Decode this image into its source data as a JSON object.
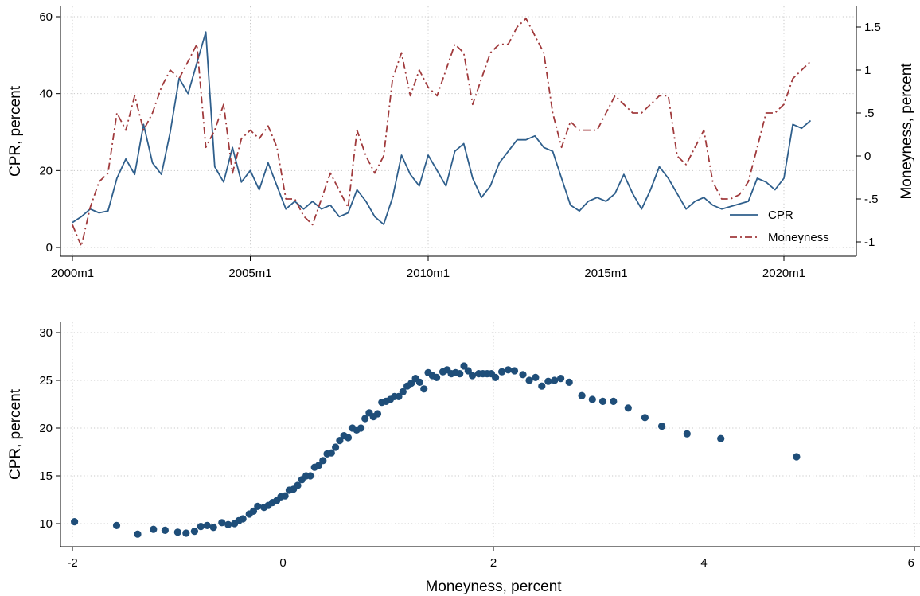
{
  "chart_data": [
    {
      "type": "line",
      "x_ticks": [
        "2000m1",
        "2005m1",
        "2010m1",
        "2015m1",
        "2020m1"
      ],
      "x_range": [
        "2000m1",
        "2021m12"
      ],
      "y_left": {
        "label": "CPR, percent",
        "range": [
          0,
          60
        ],
        "ticks": [
          0,
          20,
          40,
          60
        ]
      },
      "y_right": {
        "label": "Moneyness, percent",
        "range": [
          -1.05,
          1.7
        ],
        "ticks": [
          -1,
          -0.5,
          0,
          0.5,
          1,
          1.5
        ],
        "tick_labels": [
          "-1",
          "-.5",
          "0",
          ".5",
          "1",
          "1.5"
        ]
      },
      "grid": true,
      "legend_position": "bottom-right",
      "series": [
        {
          "name": "CPR",
          "axis": "left",
          "color": "#2f5f8c",
          "style": "solid",
          "points": [
            [
              "2000-01",
              6.5
            ],
            [
              "2000-04",
              8
            ],
            [
              "2000-07",
              10
            ],
            [
              "2000-10",
              9
            ],
            [
              "2001-01",
              9.5
            ],
            [
              "2001-04",
              18
            ],
            [
              "2001-07",
              23
            ],
            [
              "2001-10",
              19
            ],
            [
              "2002-01",
              32
            ],
            [
              "2002-04",
              22
            ],
            [
              "2002-07",
              19
            ],
            [
              "2002-10",
              30
            ],
            [
              "2003-01",
              44
            ],
            [
              "2003-04",
              40
            ],
            [
              "2003-07",
              48
            ],
            [
              "2003-10",
              56
            ],
            [
              "2004-01",
              21
            ],
            [
              "2004-04",
              17
            ],
            [
              "2004-07",
              26
            ],
            [
              "2004-10",
              17
            ],
            [
              "2005-01",
              20
            ],
            [
              "2005-04",
              15
            ],
            [
              "2005-07",
              22
            ],
            [
              "2005-10",
              16
            ],
            [
              "2006-01",
              10
            ],
            [
              "2006-04",
              12
            ],
            [
              "2006-07",
              10
            ],
            [
              "2006-10",
              12
            ],
            [
              "2007-01",
              10
            ],
            [
              "2007-04",
              11
            ],
            [
              "2007-07",
              8
            ],
            [
              "2007-10",
              9
            ],
            [
              "2008-01",
              15
            ],
            [
              "2008-04",
              12
            ],
            [
              "2008-07",
              8
            ],
            [
              "2008-10",
              6
            ],
            [
              "2009-01",
              13
            ],
            [
              "2009-04",
              24
            ],
            [
              "2009-07",
              19
            ],
            [
              "2009-10",
              16
            ],
            [
              "2010-01",
              24
            ],
            [
              "2010-04",
              20
            ],
            [
              "2010-07",
              16
            ],
            [
              "2010-10",
              25
            ],
            [
              "2011-01",
              27
            ],
            [
              "2011-04",
              18
            ],
            [
              "2011-07",
              13
            ],
            [
              "2011-10",
              16
            ],
            [
              "2012-01",
              22
            ],
            [
              "2012-04",
              25
            ],
            [
              "2012-07",
              28
            ],
            [
              "2012-10",
              28
            ],
            [
              "2013-01",
              29
            ],
            [
              "2013-04",
              26
            ],
            [
              "2013-07",
              25
            ],
            [
              "2013-10",
              18
            ],
            [
              "2014-01",
              11
            ],
            [
              "2014-04",
              9.5
            ],
            [
              "2014-07",
              12
            ],
            [
              "2014-10",
              13
            ],
            [
              "2015-01",
              12
            ],
            [
              "2015-04",
              14
            ],
            [
              "2015-07",
              19
            ],
            [
              "2015-10",
              14
            ],
            [
              "2016-01",
              10
            ],
            [
              "2016-04",
              15
            ],
            [
              "2016-07",
              21
            ],
            [
              "2016-10",
              18
            ],
            [
              "2017-01",
              14
            ],
            [
              "2017-04",
              10
            ],
            [
              "2017-07",
              12
            ],
            [
              "2017-10",
              13
            ],
            [
              "2018-01",
              11
            ],
            [
              "2018-04",
              10
            ],
            [
              "2019-01",
              12
            ],
            [
              "2019-04",
              18
            ],
            [
              "2019-07",
              17
            ],
            [
              "2019-10",
              15
            ],
            [
              "2020-01",
              18
            ],
            [
              "2020-04",
              32
            ],
            [
              "2020-07",
              31
            ],
            [
              "2020-10",
              33
            ]
          ]
        },
        {
          "name": "Moneyness",
          "axis": "right",
          "color": "#a03a3c",
          "style": "dash-dot",
          "points": [
            [
              "2000-01",
              -0.8
            ],
            [
              "2000-04",
              -1.05
            ],
            [
              "2000-07",
              -0.6
            ],
            [
              "2000-10",
              -0.3
            ],
            [
              "2001-01",
              -0.2
            ],
            [
              "2001-04",
              0.5
            ],
            [
              "2001-07",
              0.3
            ],
            [
              "2001-10",
              0.7
            ],
            [
              "2002-01",
              0.3
            ],
            [
              "2002-04",
              0.5
            ],
            [
              "2002-07",
              0.8
            ],
            [
              "2002-10",
              1
            ],
            [
              "2003-01",
              0.9
            ],
            [
              "2003-04",
              1.1
            ],
            [
              "2003-07",
              1.3
            ],
            [
              "2003-10",
              0.1
            ],
            [
              "2004-01",
              0.3
            ],
            [
              "2004-04",
              0.6
            ],
            [
              "2004-07",
              -0.2
            ],
            [
              "2004-10",
              0.2
            ],
            [
              "2005-01",
              0.3
            ],
            [
              "2005-04",
              0.2
            ],
            [
              "2005-07",
              0.35
            ],
            [
              "2005-10",
              0.1
            ],
            [
              "2006-01",
              -0.5
            ],
            [
              "2006-04",
              -0.5
            ],
            [
              "2006-07",
              -0.7
            ],
            [
              "2006-10",
              -0.8
            ],
            [
              "2007-01",
              -0.5
            ],
            [
              "2007-04",
              -0.2
            ],
            [
              "2007-07",
              -0.4
            ],
            [
              "2007-10",
              -0.6
            ],
            [
              "2008-01",
              0.3
            ],
            [
              "2008-04",
              0
            ],
            [
              "2008-07",
              -0.2
            ],
            [
              "2008-10",
              0
            ],
            [
              "2009-01",
              0.9
            ],
            [
              "2009-04",
              1.2
            ],
            [
              "2009-07",
              0.7
            ],
            [
              "2009-10",
              1
            ],
            [
              "2010-01",
              0.8
            ],
            [
              "2010-04",
              0.7
            ],
            [
              "2010-07",
              1
            ],
            [
              "2010-10",
              1.3
            ],
            [
              "2011-01",
              1.2
            ],
            [
              "2011-04",
              0.6
            ],
            [
              "2011-07",
              0.9
            ],
            [
              "2011-10",
              1.2
            ],
            [
              "2012-01",
              1.3
            ],
            [
              "2012-04",
              1.3
            ],
            [
              "2012-07",
              1.5
            ],
            [
              "2012-10",
              1.6
            ],
            [
              "2013-01",
              1.4
            ],
            [
              "2013-04",
              1.2
            ],
            [
              "2013-07",
              0.5
            ],
            [
              "2013-10",
              0.1
            ],
            [
              "2014-01",
              0.4
            ],
            [
              "2014-04",
              0.3
            ],
            [
              "2014-07",
              0.3
            ],
            [
              "2014-10",
              0.3
            ],
            [
              "2015-01",
              0.5
            ],
            [
              "2015-04",
              0.7
            ],
            [
              "2015-07",
              0.6
            ],
            [
              "2015-10",
              0.5
            ],
            [
              "2016-01",
              0.5
            ],
            [
              "2016-04",
              0.6
            ],
            [
              "2016-07",
              0.7
            ],
            [
              "2016-10",
              0.7
            ],
            [
              "2017-01",
              0
            ],
            [
              "2017-04",
              -0.1
            ],
            [
              "2017-07",
              0.1
            ],
            [
              "2017-10",
              0.3
            ],
            [
              "2018-01",
              -0.3
            ],
            [
              "2018-04",
              -0.5
            ],
            [
              "2018-07",
              -0.5
            ],
            [
              "2018-10",
              -0.45
            ],
            [
              "2019-01",
              -0.3
            ],
            [
              "2019-04",
              0.1
            ],
            [
              "2019-07",
              0.5
            ],
            [
              "2019-10",
              0.5
            ],
            [
              "2020-01",
              0.6
            ],
            [
              "2020-04",
              0.9
            ],
            [
              "2020-07",
              1
            ],
            [
              "2020-10",
              1.1
            ]
          ]
        }
      ]
    },
    {
      "type": "scatter",
      "xlabel": "Moneyness, percent",
      "ylabel": "CPR, percent",
      "xlim": [
        -2,
        6
      ],
      "ylim": [
        8,
        30
      ],
      "x_ticks": [
        -2,
        0,
        2,
        4,
        6
      ],
      "y_ticks": [
        10,
        15,
        20,
        25,
        30
      ],
      "grid": true,
      "color": "#1f4e79",
      "points": [
        [
          -1.98,
          10.2
        ],
        [
          -1.58,
          9.8
        ],
        [
          -1.38,
          8.9
        ],
        [
          -1.23,
          9.4
        ],
        [
          -1.12,
          9.3
        ],
        [
          -1.0,
          9.1
        ],
        [
          -0.92,
          9.0
        ],
        [
          -0.84,
          9.2
        ],
        [
          -0.78,
          9.7
        ],
        [
          -0.72,
          9.8
        ],
        [
          -0.66,
          9.6
        ],
        [
          -0.58,
          10.1
        ],
        [
          -0.52,
          9.9
        ],
        [
          -0.46,
          10.0
        ],
        [
          -0.42,
          10.3
        ],
        [
          -0.38,
          10.5
        ],
        [
          -0.32,
          11.0
        ],
        [
          -0.28,
          11.3
        ],
        [
          -0.24,
          11.8
        ],
        [
          -0.18,
          11.7
        ],
        [
          -0.14,
          11.9
        ],
        [
          -0.1,
          12.2
        ],
        [
          -0.06,
          12.4
        ],
        [
          -0.02,
          12.8
        ],
        [
          0.02,
          12.9
        ],
        [
          0.06,
          13.5
        ],
        [
          0.1,
          13.6
        ],
        [
          0.14,
          14.0
        ],
        [
          0.18,
          14.6
        ],
        [
          0.22,
          15.0
        ],
        [
          0.26,
          15.0
        ],
        [
          0.3,
          15.9
        ],
        [
          0.34,
          16.1
        ],
        [
          0.38,
          16.6
        ],
        [
          0.42,
          17.3
        ],
        [
          0.46,
          17.4
        ],
        [
          0.5,
          18.0
        ],
        [
          0.54,
          18.7
        ],
        [
          0.58,
          19.2
        ],
        [
          0.62,
          19.0
        ],
        [
          0.66,
          20.0
        ],
        [
          0.7,
          19.8
        ],
        [
          0.74,
          20.0
        ],
        [
          0.78,
          21.0
        ],
        [
          0.82,
          21.6
        ],
        [
          0.86,
          21.2
        ],
        [
          0.9,
          21.5
        ],
        [
          0.94,
          22.7
        ],
        [
          0.98,
          22.8
        ],
        [
          1.02,
          23.0
        ],
        [
          1.06,
          23.3
        ],
        [
          1.1,
          23.3
        ],
        [
          1.14,
          23.8
        ],
        [
          1.18,
          24.4
        ],
        [
          1.22,
          24.7
        ],
        [
          1.26,
          25.2
        ],
        [
          1.3,
          24.8
        ],
        [
          1.34,
          24.1
        ],
        [
          1.38,
          25.8
        ],
        [
          1.42,
          25.5
        ],
        [
          1.46,
          25.3
        ],
        [
          1.52,
          25.9
        ],
        [
          1.56,
          26.1
        ],
        [
          1.6,
          25.7
        ],
        [
          1.64,
          25.8
        ],
        [
          1.68,
          25.7
        ],
        [
          1.72,
          26.5
        ],
        [
          1.76,
          26.0
        ],
        [
          1.8,
          25.5
        ],
        [
          1.86,
          25.7
        ],
        [
          1.9,
          25.7
        ],
        [
          1.94,
          25.7
        ],
        [
          1.98,
          25.7
        ],
        [
          2.02,
          25.3
        ],
        [
          2.08,
          25.9
        ],
        [
          2.14,
          26.1
        ],
        [
          2.2,
          26.0
        ],
        [
          2.28,
          25.6
        ],
        [
          2.34,
          25.0
        ],
        [
          2.4,
          25.3
        ],
        [
          2.46,
          24.4
        ],
        [
          2.52,
          24.9
        ],
        [
          2.58,
          25.0
        ],
        [
          2.64,
          25.2
        ],
        [
          2.72,
          24.8
        ],
        [
          2.84,
          23.4
        ],
        [
          2.94,
          23.0
        ],
        [
          3.04,
          22.8
        ],
        [
          3.14,
          22.8
        ],
        [
          3.28,
          22.1
        ],
        [
          3.44,
          21.1
        ],
        [
          3.6,
          20.2
        ],
        [
          3.84,
          19.4
        ],
        [
          4.16,
          18.9
        ],
        [
          4.88,
          17.0
        ]
      ]
    }
  ]
}
